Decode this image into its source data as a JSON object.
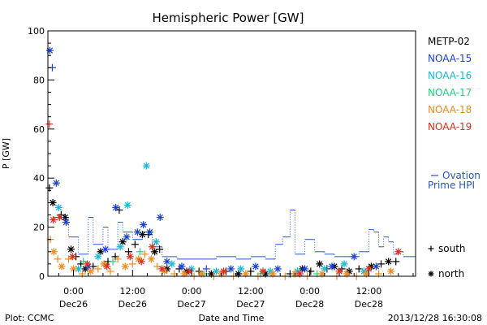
{
  "chart_data": {
    "type": "scatter",
    "title": "Hemispheric Power [GW]",
    "ylabel": "P [GW]",
    "xlabel": "Date and Time",
    "ylim": [
      0,
      100
    ],
    "yticks": [
      0,
      20,
      40,
      60,
      80,
      100
    ],
    "xticks": [
      {
        "t": 0,
        "top": "0:00",
        "bottom": "Dec26"
      },
      {
        "t": 12,
        "top": "12:00",
        "bottom": "Dec26"
      },
      {
        "t": 24,
        "top": "0:00",
        "bottom": "Dec27"
      },
      {
        "t": 36,
        "top": "12:00",
        "bottom": "Dec27"
      },
      {
        "t": 48,
        "top": "0:00",
        "bottom": "Dec28"
      },
      {
        "t": 60,
        "top": "12:00",
        "bottom": "Dec28"
      }
    ],
    "xlim": [
      -5.2,
      69.5
    ],
    "footer_left": "Plot: CCMC",
    "footer_right": "2013/12/28 16:30:08",
    "legend": [
      {
        "name": "METP-02",
        "color": "#000000"
      },
      {
        "name": "NOAA-15",
        "color": "#1a3fd6"
      },
      {
        "name": "NOAA-16",
        "color": "#15b8d8"
      },
      {
        "name": "NOAA-17",
        "color": "#22d07a"
      },
      {
        "name": "NOAA-18",
        "color": "#ee8a1a"
      },
      {
        "name": "NOAA-19",
        "color": "#e02a1a"
      }
    ],
    "ovation": {
      "label_line1": "Ovation",
      "label_line2": "Prime HPI",
      "color": "#2357c4",
      "steps": [
        {
          "x": -4.0,
          "y": 24
        },
        {
          "x": -1.0,
          "y": 16
        },
        {
          "x": 1.0,
          "y": 9
        },
        {
          "x": 3.0,
          "y": 24
        },
        {
          "x": 4.0,
          "y": 13
        },
        {
          "x": 6.0,
          "y": 20
        },
        {
          "x": 7.0,
          "y": 11
        },
        {
          "x": 9.0,
          "y": 22
        },
        {
          "x": 10.0,
          "y": 18
        },
        {
          "x": 12.0,
          "y": 15
        },
        {
          "x": 14.0,
          "y": 18
        },
        {
          "x": 16.0,
          "y": 12
        },
        {
          "x": 18.0,
          "y": 8
        },
        {
          "x": 21.0,
          "y": 7
        },
        {
          "x": 25.0,
          "y": 7
        },
        {
          "x": 29.0,
          "y": 8
        },
        {
          "x": 33.0,
          "y": 7
        },
        {
          "x": 36.0,
          "y": 8
        },
        {
          "x": 39.0,
          "y": 7
        },
        {
          "x": 41.0,
          "y": 13
        },
        {
          "x": 42.5,
          "y": 16
        },
        {
          "x": 44.0,
          "y": 27
        },
        {
          "x": 45.0,
          "y": 9
        },
        {
          "x": 47.0,
          "y": 15
        },
        {
          "x": 49.0,
          "y": 10
        },
        {
          "x": 51.0,
          "y": 9
        },
        {
          "x": 53.0,
          "y": 8
        },
        {
          "x": 56.0,
          "y": 8
        },
        {
          "x": 58.0,
          "y": 10
        },
        {
          "x": 60.0,
          "y": 19
        },
        {
          "x": 61.0,
          "y": 18
        },
        {
          "x": 62.0,
          "y": 12
        },
        {
          "x": 63.0,
          "y": 16
        },
        {
          "x": 64.0,
          "y": 14
        },
        {
          "x": 65.0,
          "y": 9
        },
        {
          "x": 66.0,
          "y": 10
        },
        {
          "x": 67.0,
          "y": 8
        },
        {
          "x": 69.5,
          "y": 8
        }
      ]
    },
    "marker_legend": [
      {
        "symbol": "+",
        "label": "south"
      },
      {
        "symbol": "*",
        "label": "north"
      }
    ],
    "series": [
      {
        "name": "METP-02",
        "color": "#000000",
        "points": [
          {
            "x": -4.9,
            "y": 36,
            "m": "+"
          },
          {
            "x": -4.2,
            "y": 30,
            "m": "*"
          },
          {
            "x": -2.5,
            "y": 25,
            "m": "+"
          },
          {
            "x": -1.7,
            "y": 24,
            "m": "*"
          },
          {
            "x": -0.5,
            "y": 11,
            "m": "*"
          },
          {
            "x": 0.5,
            "y": 8,
            "m": "+"
          },
          {
            "x": 1.5,
            "y": 5,
            "m": "+"
          },
          {
            "x": 2.4,
            "y": 3,
            "m": "*"
          },
          {
            "x": 4.0,
            "y": 4,
            "m": "+"
          },
          {
            "x": 5.5,
            "y": 10,
            "m": "*"
          },
          {
            "x": 7.0,
            "y": 6,
            "m": "+"
          },
          {
            "x": 8.5,
            "y": 8,
            "m": "+"
          },
          {
            "x": 9.3,
            "y": 27,
            "m": "+"
          },
          {
            "x": 10.0,
            "y": 14,
            "m": "*"
          },
          {
            "x": 11.2,
            "y": 10,
            "m": "+"
          },
          {
            "x": 12.5,
            "y": 13,
            "m": "+"
          },
          {
            "x": 14.0,
            "y": 17,
            "m": "*"
          },
          {
            "x": 15.2,
            "y": 17,
            "m": "+"
          },
          {
            "x": 16.5,
            "y": 10,
            "m": "*"
          },
          {
            "x": 17.5,
            "y": 11,
            "m": "+"
          },
          {
            "x": 19.0,
            "y": 3,
            "m": "*"
          },
          {
            "x": 21.5,
            "y": 3,
            "m": "+"
          },
          {
            "x": 23.0,
            "y": 2,
            "m": "*"
          },
          {
            "x": 25.5,
            "y": 2,
            "m": "+"
          },
          {
            "x": 28.0,
            "y": 1,
            "m": "*"
          },
          {
            "x": 31.0,
            "y": 2,
            "m": "+"
          },
          {
            "x": 33.5,
            "y": 1,
            "m": "*"
          },
          {
            "x": 36.0,
            "y": 2,
            "m": "+"
          },
          {
            "x": 39.0,
            "y": 1,
            "m": "*"
          },
          {
            "x": 44.0,
            "y": 1,
            "m": "+"
          },
          {
            "x": 46.5,
            "y": 3,
            "m": "*"
          },
          {
            "x": 48.2,
            "y": 2,
            "m": "+"
          },
          {
            "x": 50.0,
            "y": 5,
            "m": "*"
          },
          {
            "x": 51.5,
            "y": 3,
            "m": "+"
          },
          {
            "x": 53.0,
            "y": 4,
            "m": "*"
          },
          {
            "x": 54.5,
            "y": 3,
            "m": "+"
          },
          {
            "x": 56.0,
            "y": 2,
            "m": "*"
          },
          {
            "x": 58.0,
            "y": 3,
            "m": "+"
          },
          {
            "x": 60.5,
            "y": 4,
            "m": "*"
          },
          {
            "x": 62.5,
            "y": 5,
            "m": "+"
          },
          {
            "x": 64.0,
            "y": 6,
            "m": "*"
          },
          {
            "x": 65.5,
            "y": 6,
            "m": "+"
          }
        ]
      },
      {
        "name": "NOAA-15",
        "color": "#1a3fd6",
        "points": [
          {
            "x": -4.8,
            "y": 92,
            "m": "*"
          },
          {
            "x": -4.3,
            "y": 85,
            "m": "+"
          },
          {
            "x": -3.5,
            "y": 38,
            "m": "*"
          },
          {
            "x": -1.5,
            "y": 22,
            "m": "*"
          },
          {
            "x": 3.0,
            "y": 4,
            "m": "*"
          },
          {
            "x": 6.5,
            "y": 11,
            "m": "*"
          },
          {
            "x": 8.6,
            "y": 28,
            "m": "*"
          },
          {
            "x": 10.8,
            "y": 16,
            "m": "*"
          },
          {
            "x": 13.0,
            "y": 18,
            "m": "*"
          },
          {
            "x": 14.2,
            "y": 21,
            "m": "*"
          },
          {
            "x": 15.5,
            "y": 18,
            "m": "*"
          },
          {
            "x": 17.6,
            "y": 24,
            "m": "*"
          },
          {
            "x": 19.0,
            "y": 6,
            "m": "*"
          },
          {
            "x": 22.0,
            "y": 4,
            "m": "*"
          },
          {
            "x": 27.0,
            "y": 3,
            "m": "+"
          },
          {
            "x": 32.0,
            "y": 3,
            "m": "*"
          },
          {
            "x": 37.0,
            "y": 4,
            "m": "*"
          },
          {
            "x": 41.5,
            "y": 3,
            "m": "*"
          },
          {
            "x": 47.0,
            "y": 3,
            "m": "*"
          },
          {
            "x": 52.5,
            "y": 4,
            "m": "*"
          },
          {
            "x": 57.0,
            "y": 8,
            "m": "*"
          },
          {
            "x": 61.5,
            "y": 4,
            "m": "*"
          }
        ]
      },
      {
        "name": "NOAA-16",
        "color": "#15b8d8",
        "points": [
          {
            "x": -3.0,
            "y": 28,
            "m": "*"
          },
          {
            "x": 1.0,
            "y": 3,
            "m": "*"
          },
          {
            "x": 5.0,
            "y": 8,
            "m": "*"
          },
          {
            "x": 9.5,
            "y": 12,
            "m": "*"
          },
          {
            "x": 11.0,
            "y": 29,
            "m": "*"
          },
          {
            "x": 14.8,
            "y": 45,
            "m": "*"
          },
          {
            "x": 16.8,
            "y": 14,
            "m": "*"
          },
          {
            "x": 20.0,
            "y": 5,
            "m": "*"
          },
          {
            "x": 24.0,
            "y": 3,
            "m": "*"
          },
          {
            "x": 29.0,
            "y": 2,
            "m": "*"
          },
          {
            "x": 34.0,
            "y": 3,
            "m": "*"
          },
          {
            "x": 40.0,
            "y": 2,
            "m": "*"
          },
          {
            "x": 45.5,
            "y": 2,
            "m": "*"
          },
          {
            "x": 51.0,
            "y": 3,
            "m": "*"
          },
          {
            "x": 55.0,
            "y": 5,
            "m": "*"
          },
          {
            "x": 59.0,
            "y": 2,
            "m": "*"
          }
        ]
      },
      {
        "name": "NOAA-17",
        "color": "#22d07a",
        "points": [
          {
            "x": 2.0,
            "y": 6,
            "m": "+"
          },
          {
            "x": 8.0,
            "y": 6,
            "m": "+"
          },
          {
            "x": 13.5,
            "y": 10,
            "m": "+"
          },
          {
            "x": 26.5,
            "y": 1,
            "m": "+"
          },
          {
            "x": 38.0,
            "y": 1,
            "m": "+"
          },
          {
            "x": 49.5,
            "y": 1,
            "m": "+"
          }
        ]
      },
      {
        "name": "NOAA-18",
        "color": "#ee8a1a",
        "points": [
          {
            "x": -4.7,
            "y": 15,
            "m": "+"
          },
          {
            "x": -4.0,
            "y": 10,
            "m": "*"
          },
          {
            "x": -3.2,
            "y": 7,
            "m": "+"
          },
          {
            "x": -2.4,
            "y": 4,
            "m": "*"
          },
          {
            "x": -1.0,
            "y": 7,
            "m": "+"
          },
          {
            "x": 0.0,
            "y": 3,
            "m": "*"
          },
          {
            "x": 1.8,
            "y": 1,
            "m": "+"
          },
          {
            "x": 3.5,
            "y": 2,
            "m": "*"
          },
          {
            "x": 5.0,
            "y": 3,
            "m": "+"
          },
          {
            "x": 6.2,
            "y": 5,
            "m": "*"
          },
          {
            "x": 7.5,
            "y": 2,
            "m": "+"
          },
          {
            "x": 9.0,
            "y": 7,
            "m": "+"
          },
          {
            "x": 10.5,
            "y": 4,
            "m": "*"
          },
          {
            "x": 12.0,
            "y": 5,
            "m": "+"
          },
          {
            "x": 13.2,
            "y": 7,
            "m": "*"
          },
          {
            "x": 14.5,
            "y": 9,
            "m": "+"
          },
          {
            "x": 15.8,
            "y": 7,
            "m": "*"
          },
          {
            "x": 17.0,
            "y": 4,
            "m": "+"
          },
          {
            "x": 18.5,
            "y": 2,
            "m": "*"
          },
          {
            "x": 20.5,
            "y": 1,
            "m": "+"
          },
          {
            "x": 22.5,
            "y": 1,
            "m": "*"
          },
          {
            "x": 24.5,
            "y": 0,
            "m": "+"
          },
          {
            "x": 26.0,
            "y": 1,
            "m": "*"
          },
          {
            "x": 28.5,
            "y": 0,
            "m": "+"
          },
          {
            "x": 30.0,
            "y": 1,
            "m": "*"
          },
          {
            "x": 32.5,
            "y": 0,
            "m": "+"
          },
          {
            "x": 35.0,
            "y": 1,
            "m": "*"
          },
          {
            "x": 37.5,
            "y": 0,
            "m": "+"
          },
          {
            "x": 40.5,
            "y": 1,
            "m": "*"
          },
          {
            "x": 43.0,
            "y": 0,
            "m": "+"
          },
          {
            "x": 45.0,
            "y": 1,
            "m": "*"
          },
          {
            "x": 47.5,
            "y": 0,
            "m": "+"
          },
          {
            "x": 50.5,
            "y": 1,
            "m": "*"
          },
          {
            "x": 53.5,
            "y": 0,
            "m": "+"
          },
          {
            "x": 55.5,
            "y": 1,
            "m": "*"
          },
          {
            "x": 57.5,
            "y": 0,
            "m": "+"
          },
          {
            "x": 59.5,
            "y": 1,
            "m": "*"
          },
          {
            "x": 62.0,
            "y": 1,
            "m": "+"
          },
          {
            "x": 64.5,
            "y": 2,
            "m": "*"
          }
        ]
      },
      {
        "name": "NOAA-19",
        "color": "#e02a1a",
        "points": [
          {
            "x": -4.9,
            "y": 62,
            "m": "+"
          },
          {
            "x": -4.1,
            "y": 23,
            "m": "*"
          },
          {
            "x": -2.8,
            "y": 24,
            "m": "*"
          },
          {
            "x": -0.2,
            "y": 8,
            "m": "*"
          },
          {
            "x": 2.8,
            "y": 5,
            "m": "*"
          },
          {
            "x": 6.8,
            "y": 4,
            "m": "*"
          },
          {
            "x": 11.5,
            "y": 8,
            "m": "*"
          },
          {
            "x": 13.8,
            "y": 6,
            "m": "*"
          },
          {
            "x": 16.0,
            "y": 12,
            "m": "*"
          },
          {
            "x": 18.0,
            "y": 3,
            "m": "*"
          },
          {
            "x": 23.5,
            "y": 2,
            "m": "*"
          },
          {
            "x": 30.5,
            "y": 2,
            "m": "*"
          },
          {
            "x": 38.5,
            "y": 2,
            "m": "*"
          },
          {
            "x": 46.0,
            "y": 1,
            "m": "*"
          },
          {
            "x": 54.0,
            "y": 2,
            "m": "*"
          },
          {
            "x": 60.0,
            "y": 3,
            "m": "*"
          },
          {
            "x": 66.0,
            "y": 10,
            "m": "*"
          }
        ]
      }
    ]
  }
}
